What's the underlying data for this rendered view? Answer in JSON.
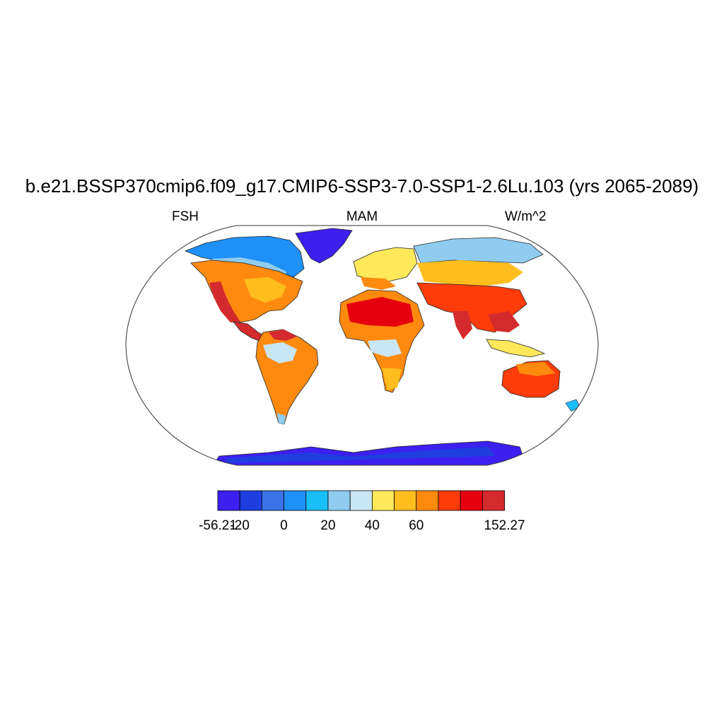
{
  "title": "b.e21.BSSP370cmip6.f09_g17.CMIP6-SSP3-7.0-SSP1-2.6Lu.103 (yrs 2065-2089)",
  "left_string": "FSH",
  "center_string": "MAM",
  "right_string": "W/m^2",
  "colorbar": {
    "colors": [
      "#3d1ff0",
      "#1e3ee0",
      "#3b73e8",
      "#1e90f8",
      "#19bdf7",
      "#8fccef",
      "#c8e6f5",
      "#ffe95a",
      "#ffbe1e",
      "#ff8a0e",
      "#ff3c0a",
      "#e6000f",
      "#d42a2e"
    ],
    "labels": [
      {
        "text": "-56.21",
        "boundary": 0
      },
      {
        "text": "-20",
        "boundary": 1
      },
      {
        "text": "0",
        "boundary": 3
      },
      {
        "text": "20",
        "boundary": 5
      },
      {
        "text": "40",
        "boundary": 7
      },
      {
        "text": "60",
        "boundary": 9
      },
      {
        "text": "152.27",
        "boundary": 13
      }
    ]
  },
  "map": {
    "projection": "Robinson",
    "fill": "gridded FSH field, MAM mean"
  }
}
